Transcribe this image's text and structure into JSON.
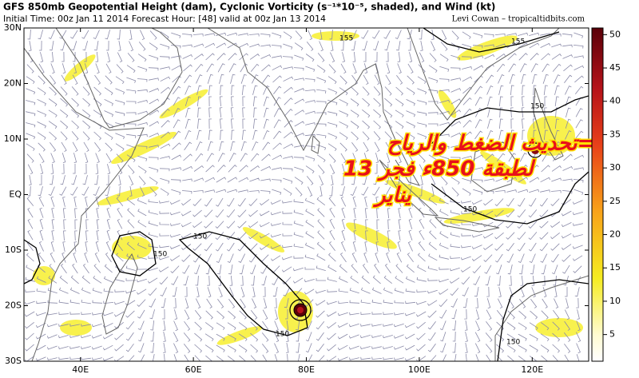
{
  "header": {
    "title": "GFS 850mb Geopotential Height (dam), Cyclonic Vorticity (s⁻¹*10⁻⁵, shaded), and Wind (kt)",
    "subtitle": "Initial Time: 00z Jan 11 2014 Forecast Hour: [48] valid at 00z Jan 13 2014",
    "credit": "Levi Cowan – tropicaltidbits.com"
  },
  "map": {
    "lon_range": [
      30,
      130
    ],
    "lat_range": [
      -30,
      30
    ],
    "lat_ticks": [
      {
        "value": 30,
        "label": "30N"
      },
      {
        "value": 20,
        "label": "20N"
      },
      {
        "value": 10,
        "label": "10N"
      },
      {
        "value": 0,
        "label": "EQ"
      },
      {
        "value": -10,
        "label": "10S"
      },
      {
        "value": -20,
        "label": "20S"
      },
      {
        "value": -30,
        "label": "30S"
      }
    ],
    "lon_ticks": [
      {
        "value": 40,
        "label": "40E"
      },
      {
        "value": 60,
        "label": "60E"
      },
      {
        "value": 80,
        "label": "80E"
      },
      {
        "value": 100,
        "label": "100E"
      },
      {
        "value": 120,
        "label": "120E"
      }
    ]
  },
  "contour_labels": [
    "155",
    "155",
    "150",
    "150",
    "150",
    "150",
    "150",
    "150"
  ],
  "overlay_text": [
    "=تحديث الضغط والرياح",
    "لطبقة 850ء فجر 13",
    "يناير"
  ],
  "colorbar": {
    "range": [
      1,
      51
    ],
    "ticks": [
      5,
      10,
      15,
      20,
      25,
      30,
      35,
      40,
      45,
      50
    ]
  }
}
